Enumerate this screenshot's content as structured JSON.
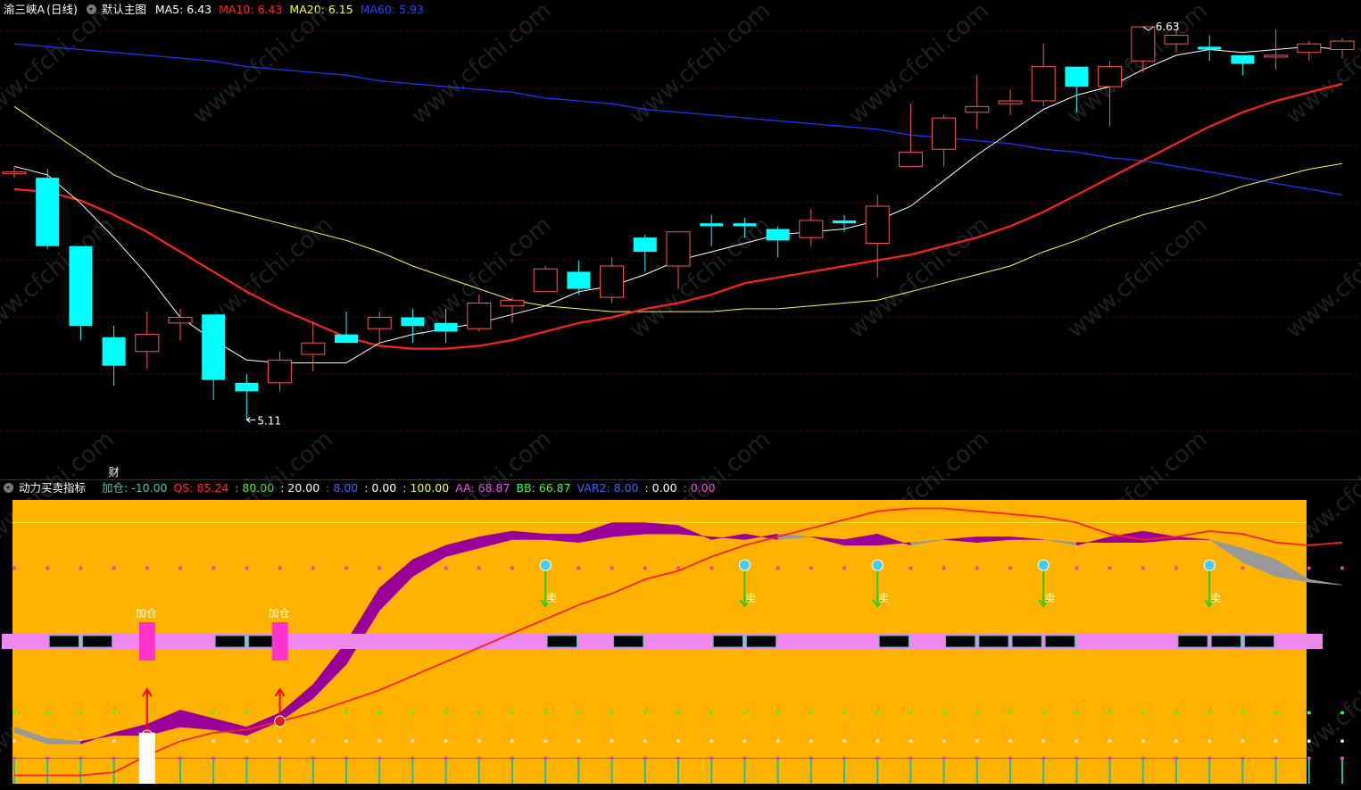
{
  "main_header": {
    "stock_name": "渝三峡A",
    "period": "(日线)",
    "template": "默认主图",
    "ma": [
      {
        "label": "MA5:",
        "value": "6.43",
        "color": "#ffffff"
      },
      {
        "label": "MA10:",
        "value": "6.43",
        "color": "#ff2222"
      },
      {
        "label": "MA20:",
        "value": "6.15",
        "color": "#ffff33"
      },
      {
        "label": "MA60:",
        "value": "5.93",
        "color": "#2244ff"
      }
    ]
  },
  "main_annotations": {
    "high": "6.63",
    "low": "5.11",
    "finance_marker": "财"
  },
  "indicator_header": {
    "name": "动力买卖指标",
    "fields": [
      {
        "text": "加仓: -10.00",
        "color": "#33cccc"
      },
      {
        "text": "QS: 85.24",
        "color": "#ff2222"
      },
      {
        "text": ": 80.00",
        "color": "#33ff33"
      },
      {
        "text": ": 20.00",
        "color": "#ffffff"
      },
      {
        "text": ": 8.00",
        "color": "#3366ff"
      },
      {
        "text": ": 0.00",
        "color": "#ffffff"
      },
      {
        "text": ": 100.00",
        "color": "#ffff33"
      },
      {
        "text": "AA: 68.87",
        "color": "#ff44ff"
      },
      {
        "text": "BB: 66.87",
        "color": "#33ff33"
      },
      {
        "text": "VAR2: 8.00",
        "color": "#3366ff"
      },
      {
        "text": ": 0.00",
        "color": "#ffffff"
      },
      {
        "text": ": 0.00",
        "color": "#ff44ff"
      }
    ]
  },
  "signals": {
    "buy_label": "加仓",
    "sell_label": "卖"
  },
  "watermark": "www.cfchi.com",
  "colors": {
    "up": "#ff5555",
    "down": "#00ffff",
    "ma5": "#ffffff",
    "ma10": "#ff2020",
    "ma20": "#ffff33",
    "ma60": "#1a33ff",
    "panel_bg": "#ffb300",
    "band_fill": "#990099",
    "band_gray": "#999999",
    "pink": "#ee88ee",
    "magenta": "#ff33cc"
  },
  "chart_data": {
    "type": "candlestick",
    "price_range": [
      5.11,
      6.63
    ],
    "candles": [
      {
        "o": 6.12,
        "c": 6.12,
        "h": 6.14,
        "l": 6.1
      },
      {
        "o": 6.1,
        "c": 5.86,
        "h": 6.13,
        "l": 5.85
      },
      {
        "o": 5.86,
        "c": 5.58,
        "h": 5.86,
        "l": 5.53
      },
      {
        "o": 5.54,
        "c": 5.44,
        "h": 5.58,
        "l": 5.37
      },
      {
        "o": 5.49,
        "c": 5.55,
        "h": 5.63,
        "l": 5.43
      },
      {
        "o": 5.59,
        "c": 5.61,
        "h": 5.64,
        "l": 5.53
      },
      {
        "o": 5.62,
        "c": 5.39,
        "h": 5.62,
        "l": 5.32
      },
      {
        "o": 5.38,
        "c": 5.35,
        "h": 5.41,
        "l": 5.25
      },
      {
        "o": 5.38,
        "c": 5.46,
        "h": 5.49,
        "l": 5.35
      },
      {
        "o": 5.48,
        "c": 5.52,
        "h": 5.59,
        "l": 5.42
      },
      {
        "o": 5.55,
        "c": 5.52,
        "h": 5.63,
        "l": 5.52
      },
      {
        "o": 5.57,
        "c": 5.61,
        "h": 5.63,
        "l": 5.52
      },
      {
        "o": 5.61,
        "c": 5.58,
        "h": 5.64,
        "l": 5.52
      },
      {
        "o": 5.59,
        "c": 5.56,
        "h": 5.64,
        "l": 5.52
      },
      {
        "o": 5.57,
        "c": 5.66,
        "h": 5.69,
        "l": 5.56
      },
      {
        "o": 5.65,
        "c": 5.67,
        "h": 5.68,
        "l": 5.59
      },
      {
        "o": 5.7,
        "c": 5.78,
        "h": 5.79,
        "l": 5.7
      },
      {
        "o": 5.77,
        "c": 5.71,
        "h": 5.81,
        "l": 5.69
      },
      {
        "o": 5.68,
        "c": 5.79,
        "h": 5.82,
        "l": 5.66
      },
      {
        "o": 5.89,
        "c": 5.84,
        "h": 5.9,
        "l": 5.77
      },
      {
        "o": 5.79,
        "c": 5.91,
        "h": 5.91,
        "l": 5.71
      },
      {
        "o": 5.94,
        "c": 5.93,
        "h": 5.97,
        "l": 5.86
      },
      {
        "o": 5.94,
        "c": 5.93,
        "h": 5.96,
        "l": 5.89
      },
      {
        "o": 5.92,
        "c": 5.88,
        "h": 5.93,
        "l": 5.82
      },
      {
        "o": 5.89,
        "c": 5.95,
        "h": 5.99,
        "l": 5.86
      },
      {
        "o": 5.95,
        "c": 5.94,
        "h": 5.97,
        "l": 5.91
      },
      {
        "o": 5.87,
        "c": 6.0,
        "h": 6.04,
        "l": 5.75
      },
      {
        "o": 6.14,
        "c": 6.19,
        "h": 6.36,
        "l": 6.14
      },
      {
        "o": 6.2,
        "c": 6.31,
        "h": 6.32,
        "l": 6.14
      },
      {
        "o": 6.33,
        "c": 6.35,
        "h": 6.46,
        "l": 6.27
      },
      {
        "o": 6.36,
        "c": 6.37,
        "h": 6.41,
        "l": 6.32
      },
      {
        "o": 6.37,
        "c": 6.49,
        "h": 6.57,
        "l": 6.35
      },
      {
        "o": 6.49,
        "c": 6.42,
        "h": 6.49,
        "l": 6.33
      },
      {
        "o": 6.42,
        "c": 6.49,
        "h": 6.51,
        "l": 6.28
      },
      {
        "o": 6.51,
        "c": 6.63,
        "h": 6.63,
        "l": 6.47
      },
      {
        "o": 6.57,
        "c": 6.6,
        "h": 6.62,
        "l": 6.54
      },
      {
        "o": 6.56,
        "c": 6.55,
        "h": 6.6,
        "l": 6.51
      },
      {
        "o": 6.53,
        "c": 6.5,
        "h": 6.53,
        "l": 6.46
      },
      {
        "o": 6.53,
        "c": 6.53,
        "h": 6.62,
        "l": 6.48
      },
      {
        "o": 6.54,
        "c": 6.57,
        "h": 6.58,
        "l": 6.51
      },
      {
        "o": 6.55,
        "c": 6.58,
        "h": 6.59,
        "l": 6.52
      }
    ],
    "ma5": [
      6.14,
      6.11,
      6.01,
      5.89,
      5.76,
      5.61,
      5.53,
      5.46,
      5.45,
      5.45,
      5.45,
      5.52,
      5.55,
      5.57,
      5.59,
      5.62,
      5.65,
      5.7,
      5.72,
      5.76,
      5.81,
      5.84,
      5.87,
      5.9,
      5.91,
      5.92,
      5.95,
      6.0,
      6.09,
      6.18,
      6.26,
      6.34,
      6.39,
      6.42,
      6.48,
      6.53,
      6.55,
      6.54,
      6.55,
      6.56,
      6.55
    ],
    "ma10": [
      6.06,
      6.05,
      6.02,
      5.97,
      5.91,
      5.84,
      5.77,
      5.7,
      5.64,
      5.59,
      5.54,
      5.51,
      5.5,
      5.5,
      5.51,
      5.53,
      5.56,
      5.59,
      5.61,
      5.64,
      5.66,
      5.69,
      5.73,
      5.75,
      5.77,
      5.79,
      5.81,
      5.83,
      5.86,
      5.89,
      5.93,
      5.98,
      6.04,
      6.1,
      6.16,
      6.22,
      6.28,
      6.33,
      6.37,
      6.4,
      6.43
    ],
    "ma20": [
      6.35,
      6.27,
      6.19,
      6.11,
      6.06,
      6.03,
      6.0,
      5.97,
      5.94,
      5.91,
      5.88,
      5.84,
      5.79,
      5.75,
      5.71,
      5.67,
      5.65,
      5.64,
      5.63,
      5.63,
      5.63,
      5.63,
      5.64,
      5.64,
      5.65,
      5.66,
      5.67,
      5.7,
      5.73,
      5.76,
      5.79,
      5.84,
      5.88,
      5.93,
      5.97,
      6.0,
      6.03,
      6.07,
      6.1,
      6.13,
      6.15
    ],
    "ma60": [
      6.57,
      6.56,
      6.55,
      6.54,
      6.53,
      6.52,
      6.51,
      6.49,
      6.48,
      6.47,
      6.46,
      6.44,
      6.43,
      6.42,
      6.41,
      6.4,
      6.38,
      6.37,
      6.36,
      6.34,
      6.33,
      6.32,
      6.31,
      6.3,
      6.29,
      6.28,
      6.27,
      6.25,
      6.24,
      6.23,
      6.22,
      6.2,
      6.19,
      6.17,
      6.16,
      6.14,
      6.12,
      6.1,
      6.08,
      6.06,
      6.04
    ],
    "indicator": {
      "range": [
        0,
        100
      ],
      "qs": [
        3,
        3,
        3,
        4,
        10,
        15,
        18,
        19,
        22,
        25,
        29,
        33,
        38,
        43,
        48,
        53,
        58,
        63,
        67,
        72,
        75,
        80,
        84,
        87,
        90,
        93,
        96,
        97,
        97,
        96,
        95,
        94,
        92,
        88,
        86,
        87,
        89,
        88,
        85,
        84,
        85
      ],
      "aa": [
        18,
        14,
        14,
        18,
        21,
        26,
        23,
        20,
        25,
        35,
        50,
        69,
        79,
        84,
        87,
        89,
        88,
        88,
        92,
        92,
        91,
        86,
        88,
        86,
        87,
        86,
        88,
        84,
        86,
        87,
        87,
        86,
        84,
        87,
        89,
        87,
        86,
        78,
        73,
        71,
        70
      ],
      "bb": [
        20,
        16,
        15,
        17,
        17,
        20,
        19,
        17,
        22,
        30,
        42,
        61,
        73,
        80,
        83,
        86,
        86,
        85,
        87,
        88,
        88,
        87,
        86,
        88,
        87,
        84,
        84,
        85,
        86,
        85,
        86,
        86,
        85,
        85,
        85,
        86,
        86,
        83,
        79,
        72,
        70
      ],
      "buy_index": [
        4,
        8
      ],
      "sell_index": [
        16,
        22,
        26,
        31,
        36
      ],
      "pink_bar_dark": [
        1,
        2,
        6,
        7,
        16,
        18,
        21,
        22,
        26,
        28,
        29,
        30,
        31,
        35,
        36,
        37
      ]
    }
  }
}
